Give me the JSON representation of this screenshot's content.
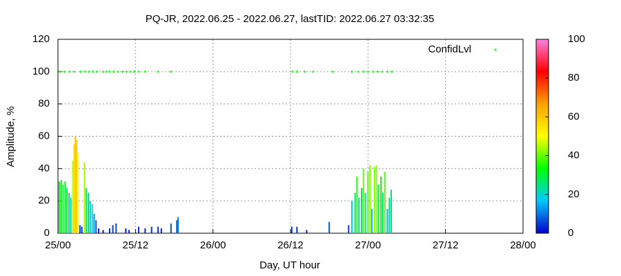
{
  "chart_data": {
    "type": "impulse",
    "title": "PQ-JR, 2022.06.25 - 2022.06.27, lastTID: 2022.06.27 03:32:35",
    "xlabel": "Day, UT hour",
    "ylabel": "Amplitude, %",
    "xlim": [
      0,
      72
    ],
    "xticks": [
      {
        "value": 0,
        "label": "25/00"
      },
      {
        "value": 12,
        "label": "25/12"
      },
      {
        "value": 24,
        "label": "26/00"
      },
      {
        "value": 36,
        "label": "26/12"
      },
      {
        "value": 48,
        "label": "27/00"
      },
      {
        "value": 60,
        "label": "27/12"
      },
      {
        "value": 72,
        "label": "28/00"
      }
    ],
    "ylim": [
      0,
      120
    ],
    "yticks": [
      0,
      20,
      40,
      60,
      80,
      100,
      120
    ],
    "grid": true,
    "cblim": [
      0,
      100
    ],
    "cbticks": [
      0,
      20,
      40,
      60,
      80,
      100
    ],
    "palette": [
      "#0000c8",
      "#00c8ff",
      "#00ff00",
      "#ffff00",
      "#ffa000",
      "#ff0000",
      "#ff80e0"
    ],
    "legend": "top-right",
    "series": [
      {
        "x": [
          0.2,
          0.5,
          0.8,
          1.1,
          1.4,
          1.7,
          2.0,
          2.3,
          2.5,
          2.7,
          2.9,
          3.1,
          3.4,
          3.7,
          4.1,
          4.4,
          4.7,
          5.0,
          5.3,
          5.6,
          5.9,
          6.3,
          7.0,
          8.0,
          8.5,
          9.0,
          10.5,
          11.0,
          12.5,
          13.5,
          14.5,
          15.5,
          16.0,
          17.5,
          18.4,
          18.6,
          36.2,
          37.0,
          38.5,
          42.0,
          45.0,
          45.5,
          46.0,
          46.3,
          46.6,
          47.0,
          47.3,
          47.6,
          48.0,
          48.3,
          48.6,
          49.0,
          49.3,
          49.6,
          50.0,
          50.3,
          50.6,
          51.0,
          51.3,
          51.6
        ],
        "values": [
          32,
          33,
          30,
          32,
          28,
          25,
          22,
          45,
          55,
          60,
          58,
          50,
          5,
          4,
          44,
          28,
          25,
          20,
          18,
          12,
          8,
          3,
          2,
          3,
          5,
          6,
          3,
          2,
          4,
          3,
          4,
          4,
          3,
          6,
          8,
          10,
          4,
          4,
          2,
          7,
          5,
          20,
          25,
          35,
          22,
          28,
          40,
          25,
          38,
          42,
          15,
          41,
          42,
          30,
          35,
          25,
          38,
          15,
          22,
          27
        ]
      },
      {
        "name": "ConfidLvl",
        "color": "#00ff00",
        "x": [
          0.3,
          1,
          1.8,
          2.5,
          3.5,
          4.2,
          4.8,
          5.4,
          6,
          7,
          7.5,
          8,
          8.6,
          9.3,
          10,
          10.6,
          11.2,
          11.8,
          12.5,
          13.5,
          15.5,
          17.5,
          36.3,
          37,
          38.2,
          39.5,
          42.5,
          45.5,
          46.5,
          47.3,
          48,
          48.8,
          49.5,
          50.2,
          51,
          51.7
        ],
        "values": [
          100,
          100,
          100,
          100,
          100,
          100,
          100,
          100,
          100,
          100,
          100,
          100,
          100,
          100,
          100,
          100,
          100,
          100,
          100,
          100,
          100,
          100,
          100,
          100,
          100,
          100,
          100,
          100,
          100,
          100,
          100,
          100,
          100,
          100,
          100,
          100
        ]
      }
    ]
  }
}
